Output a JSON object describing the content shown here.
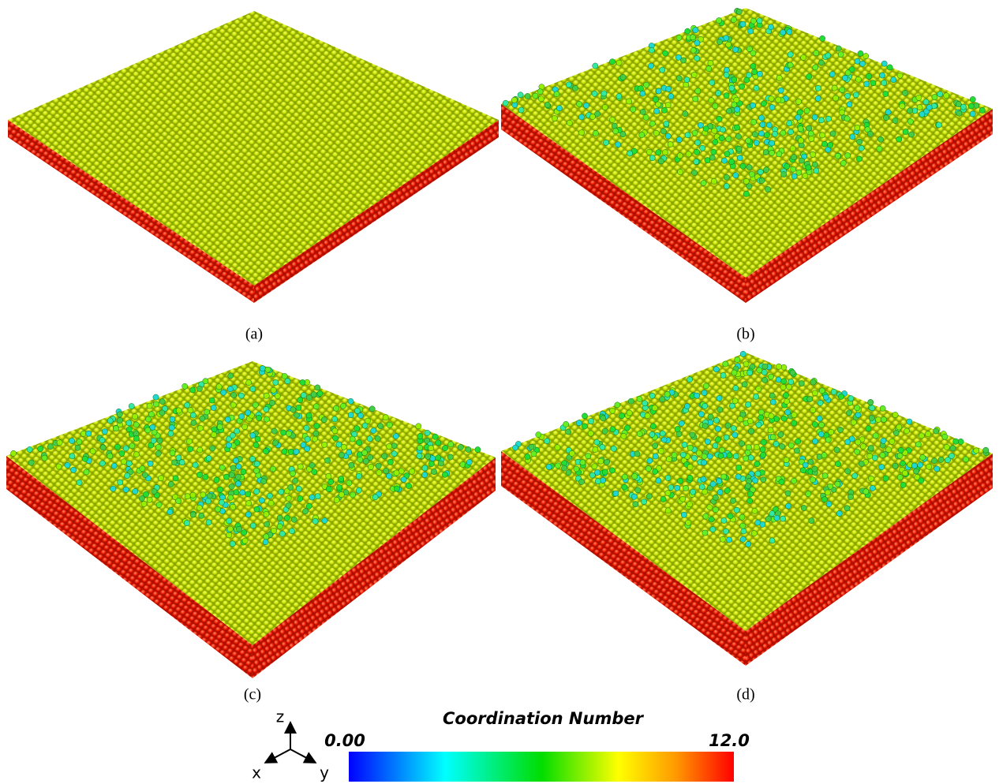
{
  "panels": [
    {
      "caption": "(a)"
    },
    {
      "caption": "(b)"
    },
    {
      "caption": "(c)"
    },
    {
      "caption": "(d)"
    }
  ],
  "colorbar": {
    "title": "Coordination Number",
    "min_label": "0.00",
    "max_label": "12.0"
  },
  "axes_triad": {
    "z": "z",
    "x": "x",
    "y": "y"
  }
}
